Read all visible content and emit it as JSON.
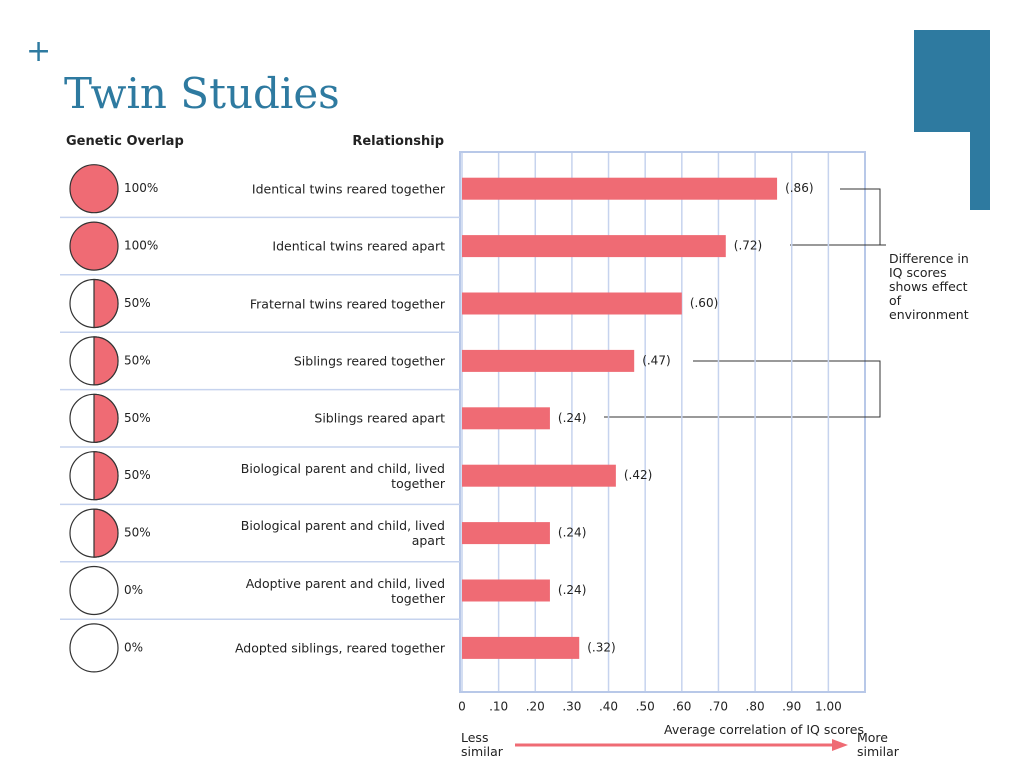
{
  "bullet": "+",
  "chart_data": {
    "type": "bar",
    "orientation": "horizontal",
    "title": "Twin Studies",
    "overlap_header": "Genetic Overlap",
    "category_header": "Relationship",
    "categories": [
      "Identical twins reared together",
      "Identical twins reared apart",
      "Fraternal twins reared together",
      "Siblings reared together",
      "Siblings reared apart",
      "Biological parent and child, lived together",
      "Biological parent and child, lived apart",
      "Adoptive parent and child, lived together",
      "Adopted siblings, reared together"
    ],
    "overlap": [
      100,
      100,
      50,
      50,
      50,
      50,
      50,
      0,
      0
    ],
    "overlap_labels": [
      "100%",
      "100%",
      "50%",
      "50%",
      "50%",
      "50%",
      "50%",
      "0%",
      "0%"
    ],
    "values": [
      0.86,
      0.72,
      0.6,
      0.47,
      0.24,
      0.42,
      0.24,
      0.24,
      0.32
    ],
    "value_labels": [
      "(.86)",
      "(.72)",
      "(.60)",
      "(.47)",
      "(.24)",
      "(.42)",
      "(.24)",
      "(.24)",
      "(.32)"
    ],
    "color": "#ef6b74",
    "xlim": [
      0,
      1.1
    ],
    "xticks": [
      0,
      {
        "value": 0.1,
        "label": ".10"
      },
      {
        "value": 0.2,
        "label": ".20"
      },
      {
        "value": 0.3,
        "label": ".30"
      },
      {
        "value": 0.4,
        "label": ".40"
      },
      {
        "value": 0.5,
        "label": ".50"
      },
      {
        "value": 0.6,
        "label": ".60"
      },
      {
        "value": 0.7,
        "label": ".70"
      },
      {
        "value": 0.8,
        "label": ".80"
      },
      {
        "value": 0.9,
        "label": ".90"
      },
      {
        "value": 1.0,
        "label": "1.00"
      }
    ],
    "grid": true,
    "xlabel": "Average correlation of IQ scores",
    "x_low_label": "Less similar",
    "x_high_label": "More similar",
    "annotation": "Difference in IQ scores shows effect of environment"
  }
}
